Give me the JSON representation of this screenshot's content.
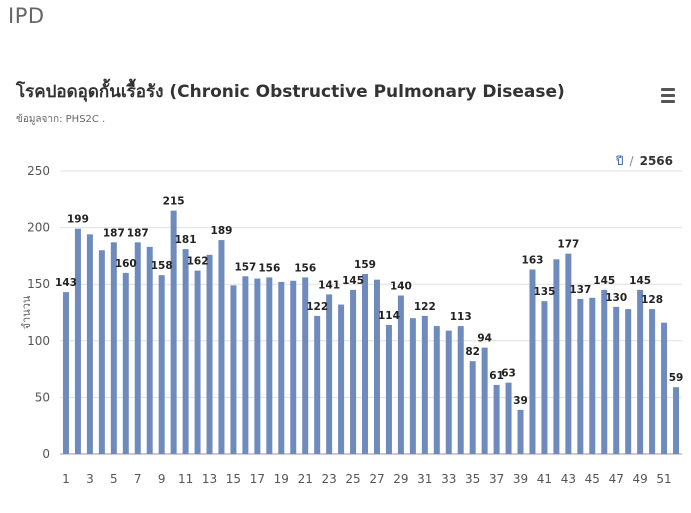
{
  "page": {
    "heading": "IPD"
  },
  "header": {
    "title": "โรคปอดอุดกั้นเรื้อรัง (Chronic Obstructive Pulmonary Disease)",
    "subtitle": "ข้อมูลจาก: PHS2C ."
  },
  "menu": {
    "icon": "hamburger-menu-icon"
  },
  "year_selector": {
    "label": "ปี",
    "separator": "/",
    "value": "2566"
  },
  "colors": {
    "bar": "#6f8bbd",
    "grid": "#e1e1e1",
    "axis": "#999999"
  },
  "chart_data": {
    "type": "bar",
    "title": "",
    "xlabel": "",
    "ylabel": "จำนวน",
    "ylim": [
      0,
      250
    ],
    "yticks": [
      0,
      50,
      100,
      150,
      200,
      250
    ],
    "grid": true,
    "x": [
      1,
      2,
      3,
      4,
      5,
      6,
      7,
      8,
      9,
      10,
      11,
      12,
      13,
      14,
      15,
      16,
      17,
      18,
      19,
      20,
      21,
      22,
      23,
      24,
      25,
      26,
      27,
      28,
      29,
      30,
      31,
      32,
      33,
      34,
      35,
      36,
      37,
      38,
      39,
      40,
      41,
      42,
      43,
      44,
      45,
      46,
      47,
      48,
      49,
      50,
      51,
      52
    ],
    "xtick_labels": [
      "1",
      "3",
      "5",
      "7",
      "9",
      "11",
      "13",
      "15",
      "17",
      "19",
      "21",
      "23",
      "25",
      "27",
      "29",
      "31",
      "33",
      "35",
      "37",
      "39",
      "41",
      "43",
      "45",
      "47",
      "49",
      "51"
    ],
    "values": [
      143,
      199,
      194,
      180,
      187,
      160,
      187,
      183,
      158,
      215,
      181,
      162,
      176,
      189,
      149,
      157,
      155,
      156,
      152,
      153,
      156,
      122,
      141,
      132,
      145,
      159,
      154,
      114,
      140,
      120,
      122,
      113,
      109,
      113,
      82,
      94,
      61,
      63,
      39,
      163,
      135,
      172,
      177,
      137,
      138,
      145,
      130,
      128,
      145,
      128,
      116,
      59
    ],
    "labeled_points": [
      {
        "x": 1,
        "label": "143"
      },
      {
        "x": 2,
        "label": "199"
      },
      {
        "x": 5,
        "label": "187"
      },
      {
        "x": 6,
        "label": "160"
      },
      {
        "x": 7,
        "label": "187"
      },
      {
        "x": 9,
        "label": "158"
      },
      {
        "x": 10,
        "label": "215"
      },
      {
        "x": 11,
        "label": "181"
      },
      {
        "x": 12,
        "label": "162"
      },
      {
        "x": 14,
        "label": "189"
      },
      {
        "x": 16,
        "label": "157"
      },
      {
        "x": 18,
        "label": "156"
      },
      {
        "x": 21,
        "label": "156"
      },
      {
        "x": 22,
        "label": "122"
      },
      {
        "x": 23,
        "label": "141"
      },
      {
        "x": 25,
        "label": "145"
      },
      {
        "x": 26,
        "label": "159"
      },
      {
        "x": 28,
        "label": "114"
      },
      {
        "x": 29,
        "label": "140"
      },
      {
        "x": 31,
        "label": "122"
      },
      {
        "x": 34,
        "label": "113"
      },
      {
        "x": 35,
        "label": "82"
      },
      {
        "x": 36,
        "label": "94"
      },
      {
        "x": 37,
        "label": "61"
      },
      {
        "x": 38,
        "label": "63"
      },
      {
        "x": 39,
        "label": "39"
      },
      {
        "x": 40,
        "label": "163"
      },
      {
        "x": 41,
        "label": "135"
      },
      {
        "x": 43,
        "label": "177"
      },
      {
        "x": 44,
        "label": "137"
      },
      {
        "x": 46,
        "label": "145"
      },
      {
        "x": 47,
        "label": "130"
      },
      {
        "x": 49,
        "label": "145"
      },
      {
        "x": 50,
        "label": "128"
      },
      {
        "x": 52,
        "label": "59"
      }
    ]
  }
}
